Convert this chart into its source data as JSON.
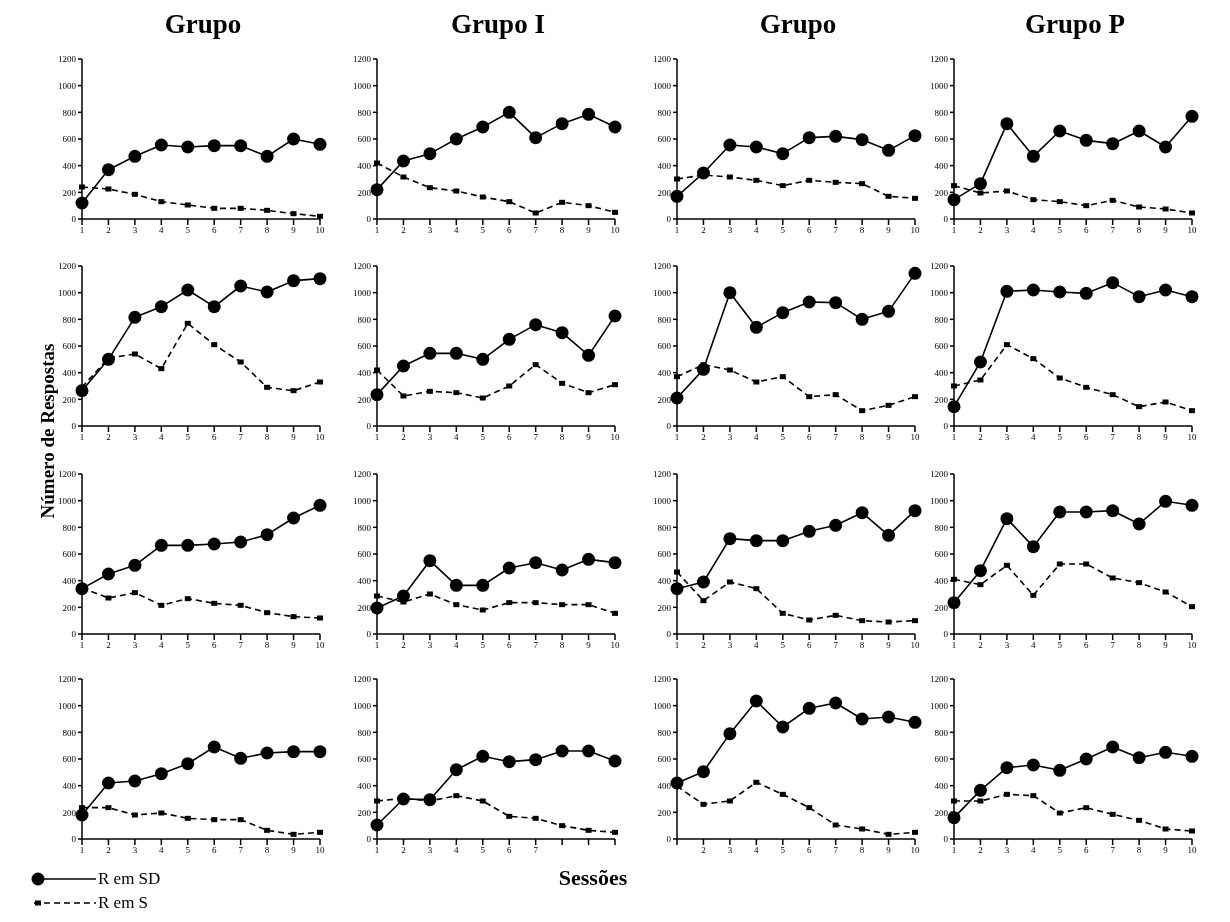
{
  "chart_data": [
    {
      "type": "line",
      "title": "Grupo",
      "categories": [
        "1",
        "2",
        "3",
        "4",
        "5",
        "6",
        "7",
        "8",
        "9",
        "10"
      ],
      "ylim": [
        0,
        1200
      ],
      "yticks": [
        0,
        200,
        400,
        600,
        800,
        1000,
        1200
      ],
      "series": [
        {
          "color": "#000000",
          "marker": "circle",
          "line_style": "solid",
          "values": [
            120,
            370,
            470,
            555,
            540,
            550,
            550,
            470,
            600,
            560
          ]
        },
        {
          "color": "#000000",
          "marker": "square",
          "line_style": "dashed",
          "values": [
            240,
            225,
            185,
            130,
            105,
            80,
            80,
            65,
            40,
            20
          ]
        }
      ]
    },
    {
      "type": "line",
      "title": "Grupo I",
      "categories": [
        "1",
        "2",
        "3",
        "4",
        "5",
        "6",
        "7",
        "8",
        "9",
        "10"
      ],
      "ylim": [
        0,
        1200
      ],
      "yticks": [
        0,
        200,
        400,
        600,
        800,
        1000,
        1200
      ],
      "series": [
        {
          "color": "#000000",
          "marker": "circle",
          "line_style": "solid",
          "values": [
            220,
            435,
            490,
            600,
            690,
            800,
            610,
            715,
            785,
            690
          ]
        },
        {
          "color": "#000000",
          "marker": "square",
          "line_style": "dashed",
          "values": [
            420,
            315,
            235,
            210,
            165,
            130,
            45,
            125,
            100,
            50
          ]
        }
      ]
    },
    {
      "type": "line",
      "title": "Grupo",
      "categories": [
        "1",
        "2",
        "3",
        "4",
        "5",
        "6",
        "7",
        "8",
        "9",
        "10"
      ],
      "ylim": [
        0,
        1200
      ],
      "yticks": [
        0,
        200,
        400,
        600,
        800,
        1000,
        1200
      ],
      "series": [
        {
          "color": "#000000",
          "marker": "circle",
          "line_style": "solid",
          "values": [
            170,
            345,
            555,
            540,
            490,
            610,
            620,
            595,
            515,
            625
          ]
        },
        {
          "color": "#000000",
          "marker": "square",
          "line_style": "dashed",
          "values": [
            300,
            330,
            315,
            290,
            250,
            290,
            275,
            265,
            170,
            155
          ]
        }
      ]
    },
    {
      "type": "line",
      "title": "Grupo P",
      "categories": [
        "1",
        "2",
        "3",
        "4",
        "5",
        "6",
        "7",
        "8",
        "9",
        "10"
      ],
      "ylim": [
        0,
        1200
      ],
      "yticks": [
        0,
        200,
        400,
        600,
        800,
        1000,
        1200
      ],
      "series": [
        {
          "color": "#000000",
          "marker": "circle",
          "line_style": "solid",
          "values": [
            145,
            265,
            715,
            470,
            660,
            590,
            565,
            660,
            540,
            770
          ]
        },
        {
          "color": "#000000",
          "marker": "square",
          "line_style": "dashed",
          "values": [
            250,
            195,
            210,
            145,
            130,
            100,
            140,
            90,
            75,
            45
          ]
        }
      ]
    },
    {
      "type": "line",
      "ylabel": "Número de Respostas",
      "categories": [
        "1",
        "2",
        "3",
        "4",
        "5",
        "6",
        "7",
        "8",
        "9",
        "10"
      ],
      "ylim": [
        0,
        1200
      ],
      "yticks": [
        0,
        200,
        400,
        600,
        800,
        1000,
        1200
      ],
      "series": [
        {
          "color": "#000000",
          "marker": "circle",
          "line_style": "solid",
          "values": [
            265,
            500,
            815,
            895,
            1020,
            895,
            1050,
            1005,
            1090,
            1105
          ]
        },
        {
          "color": "#000000",
          "marker": "square",
          "line_style": "dashed",
          "values": [
            290,
            510,
            540,
            430,
            770,
            610,
            480,
            290,
            265,
            330
          ]
        }
      ]
    },
    {
      "type": "line",
      "categories": [
        "1",
        "2",
        "3",
        "4",
        "5",
        "6",
        "7",
        "8",
        "9",
        "10"
      ],
      "ylim": [
        0,
        1200
      ],
      "yticks": [
        0,
        200,
        400,
        600,
        800,
        1000,
        1200
      ],
      "series": [
        {
          "color": "#000000",
          "marker": "circle",
          "line_style": "solid",
          "values": [
            235,
            450,
            545,
            545,
            500,
            650,
            760,
            700,
            530,
            825
          ]
        },
        {
          "color": "#000000",
          "marker": "square",
          "line_style": "dashed",
          "values": [
            420,
            225,
            260,
            250,
            210,
            300,
            460,
            320,
            250,
            310
          ]
        }
      ]
    },
    {
      "type": "line",
      "categories": [
        "1",
        "2",
        "3",
        "4",
        "5",
        "6",
        "7",
        "8",
        "9",
        "10"
      ],
      "ylim": [
        0,
        1200
      ],
      "yticks": [
        0,
        200,
        400,
        600,
        800,
        1000,
        1200
      ],
      "series": [
        {
          "color": "#000000",
          "marker": "circle",
          "line_style": "solid",
          "values": [
            210,
            425,
            1000,
            740,
            850,
            930,
            925,
            800,
            860,
            1145
          ]
        },
        {
          "color": "#000000",
          "marker": "square",
          "line_style": "dashed",
          "values": [
            370,
            460,
            420,
            330,
            370,
            220,
            235,
            115,
            155,
            220
          ]
        }
      ]
    },
    {
      "type": "line",
      "categories": [
        "1",
        "2",
        "3",
        "4",
        "5",
        "6",
        "7",
        "8",
        "9",
        "10"
      ],
      "ylim": [
        0,
        1200
      ],
      "yticks": [
        0,
        200,
        400,
        600,
        800,
        1000,
        1200
      ],
      "series": [
        {
          "color": "#000000",
          "marker": "circle",
          "line_style": "solid",
          "values": [
            145,
            480,
            1010,
            1020,
            1005,
            995,
            1075,
            970,
            1020,
            970
          ]
        },
        {
          "color": "#000000",
          "marker": "square",
          "line_style": "dashed",
          "values": [
            300,
            345,
            610,
            505,
            360,
            290,
            235,
            145,
            180,
            115
          ]
        }
      ]
    },
    {
      "type": "line",
      "categories": [
        "1",
        "2",
        "3",
        "4",
        "5",
        "6",
        "7",
        "8",
        "9",
        "10"
      ],
      "ylim": [
        0,
        1200
      ],
      "yticks": [
        0,
        200,
        400,
        600,
        800,
        1000,
        1200
      ],
      "series": [
        {
          "color": "#000000",
          "marker": "circle",
          "line_style": "solid",
          "values": [
            340,
            450,
            515,
            665,
            665,
            675,
            690,
            745,
            870,
            965
          ]
        },
        {
          "color": "#000000",
          "marker": "square",
          "line_style": "dashed",
          "values": [
            345,
            270,
            310,
            215,
            265,
            230,
            215,
            160,
            130,
            120
          ]
        }
      ]
    },
    {
      "type": "line",
      "categories": [
        "1",
        "2",
        "3",
        "4",
        "5",
        "6",
        "7",
        "8",
        "9",
        "10"
      ],
      "ylim": [
        0,
        1200
      ],
      "yticks": [
        0,
        200,
        400,
        600,
        800,
        1000,
        1200
      ],
      "series": [
        {
          "color": "#000000",
          "marker": "circle",
          "line_style": "solid",
          "values": [
            195,
            285,
            550,
            365,
            365,
            495,
            535,
            480,
            560,
            535
          ]
        },
        {
          "color": "#000000",
          "marker": "square",
          "line_style": "dashed",
          "values": [
            285,
            240,
            300,
            220,
            180,
            235,
            235,
            220,
            220,
            155
          ]
        }
      ]
    },
    {
      "type": "line",
      "categories": [
        "1",
        "2",
        "3",
        "4",
        "5",
        "6",
        "7",
        "8",
        "9",
        "10"
      ],
      "ylim": [
        0,
        1200
      ],
      "yticks": [
        0,
        200,
        400,
        600,
        800,
        1000,
        1200
      ],
      "series": [
        {
          "color": "#000000",
          "marker": "circle",
          "line_style": "solid",
          "values": [
            340,
            390,
            715,
            700,
            700,
            770,
            815,
            910,
            740,
            925
          ]
        },
        {
          "color": "#000000",
          "marker": "square",
          "line_style": "dashed",
          "values": [
            465,
            250,
            390,
            340,
            155,
            105,
            140,
            100,
            90,
            100
          ]
        }
      ]
    },
    {
      "type": "line",
      "categories": [
        "1",
        "2",
        "3",
        "4",
        "5",
        "6",
        "7",
        "8",
        "9",
        "10"
      ],
      "ylim": [
        0,
        1200
      ],
      "yticks": [
        0,
        200,
        400,
        600,
        800,
        1000,
        1200
      ],
      "series": [
        {
          "color": "#000000",
          "marker": "circle",
          "line_style": "solid",
          "values": [
            235,
            475,
            865,
            655,
            915,
            915,
            925,
            825,
            995,
            965
          ]
        },
        {
          "color": "#000000",
          "marker": "square",
          "line_style": "dashed",
          "values": [
            410,
            370,
            515,
            290,
            525,
            525,
            420,
            385,
            315,
            205
          ]
        }
      ]
    },
    {
      "type": "line",
      "legend": "bottom left",
      "categories": [
        "1",
        "2",
        "3",
        "4",
        "5",
        "6",
        "7",
        "8",
        "9",
        "10"
      ],
      "ylim": [
        0,
        1200
      ],
      "yticks": [
        0,
        200,
        400,
        600,
        800,
        1000,
        1200
      ],
      "series": [
        {
          "name": "R em SD",
          "color": "#000000",
          "marker": "circle",
          "line_style": "solid",
          "values": [
            180,
            420,
            435,
            490,
            565,
            690,
            605,
            645,
            655,
            655
          ]
        },
        {
          "name": "R em S",
          "color": "#000000",
          "marker": "square",
          "line_style": "dashed",
          "values": [
            235,
            235,
            180,
            195,
            155,
            145,
            145,
            65,
            35,
            50
          ]
        }
      ]
    },
    {
      "type": "line",
      "xlabel": "Sessões",
      "categories": [
        "1",
        "2",
        "3",
        "4",
        "5",
        "6",
        "7",
        null,
        null,
        null
      ],
      "ylim": [
        0,
        1200
      ],
      "yticks": [
        0,
        200,
        400,
        600,
        800,
        1000,
        1200
      ],
      "series": [
        {
          "color": "#000000",
          "marker": "circle",
          "line_style": "solid",
          "values": [
            105,
            300,
            295,
            520,
            620,
            580,
            595,
            660,
            660,
            585
          ]
        },
        {
          "color": "#000000",
          "marker": "square",
          "line_style": "dashed",
          "values": [
            285,
            305,
            285,
            325,
            285,
            170,
            155,
            100,
            65,
            50
          ]
        }
      ]
    },
    {
      "type": "line",
      "categories": [
        null,
        "2",
        "3",
        "4",
        "5",
        "6",
        "7",
        "8",
        "9",
        "10"
      ],
      "ylim": [
        0,
        1200
      ],
      "yticks": [
        0,
        200,
        400,
        600,
        800,
        1000,
        1200
      ],
      "series": [
        {
          "color": "#000000",
          "marker": "circle",
          "line_style": "solid",
          "values": [
            420,
            505,
            790,
            1035,
            840,
            980,
            1020,
            900,
            915,
            875
          ]
        },
        {
          "color": "#000000",
          "marker": "square",
          "line_style": "dashed",
          "values": [
            395,
            260,
            285,
            425,
            335,
            235,
            105,
            75,
            35,
            50
          ]
        }
      ]
    },
    {
      "type": "line",
      "categories": [
        "1",
        "2",
        "3",
        "4",
        "5",
        "6",
        "7",
        "8",
        "9",
        "10"
      ],
      "ylim": [
        0,
        1200
      ],
      "yticks": [
        0,
        200,
        400,
        600,
        800,
        1000,
        1200
      ],
      "series": [
        {
          "color": "#000000",
          "marker": "circle",
          "line_style": "solid",
          "values": [
            160,
            365,
            535,
            555,
            515,
            600,
            690,
            610,
            650,
            620
          ]
        },
        {
          "color": "#000000",
          "marker": "square",
          "line_style": "dashed",
          "values": [
            285,
            285,
            335,
            325,
            195,
            235,
            185,
            140,
            75,
            60
          ]
        }
      ]
    }
  ]
}
